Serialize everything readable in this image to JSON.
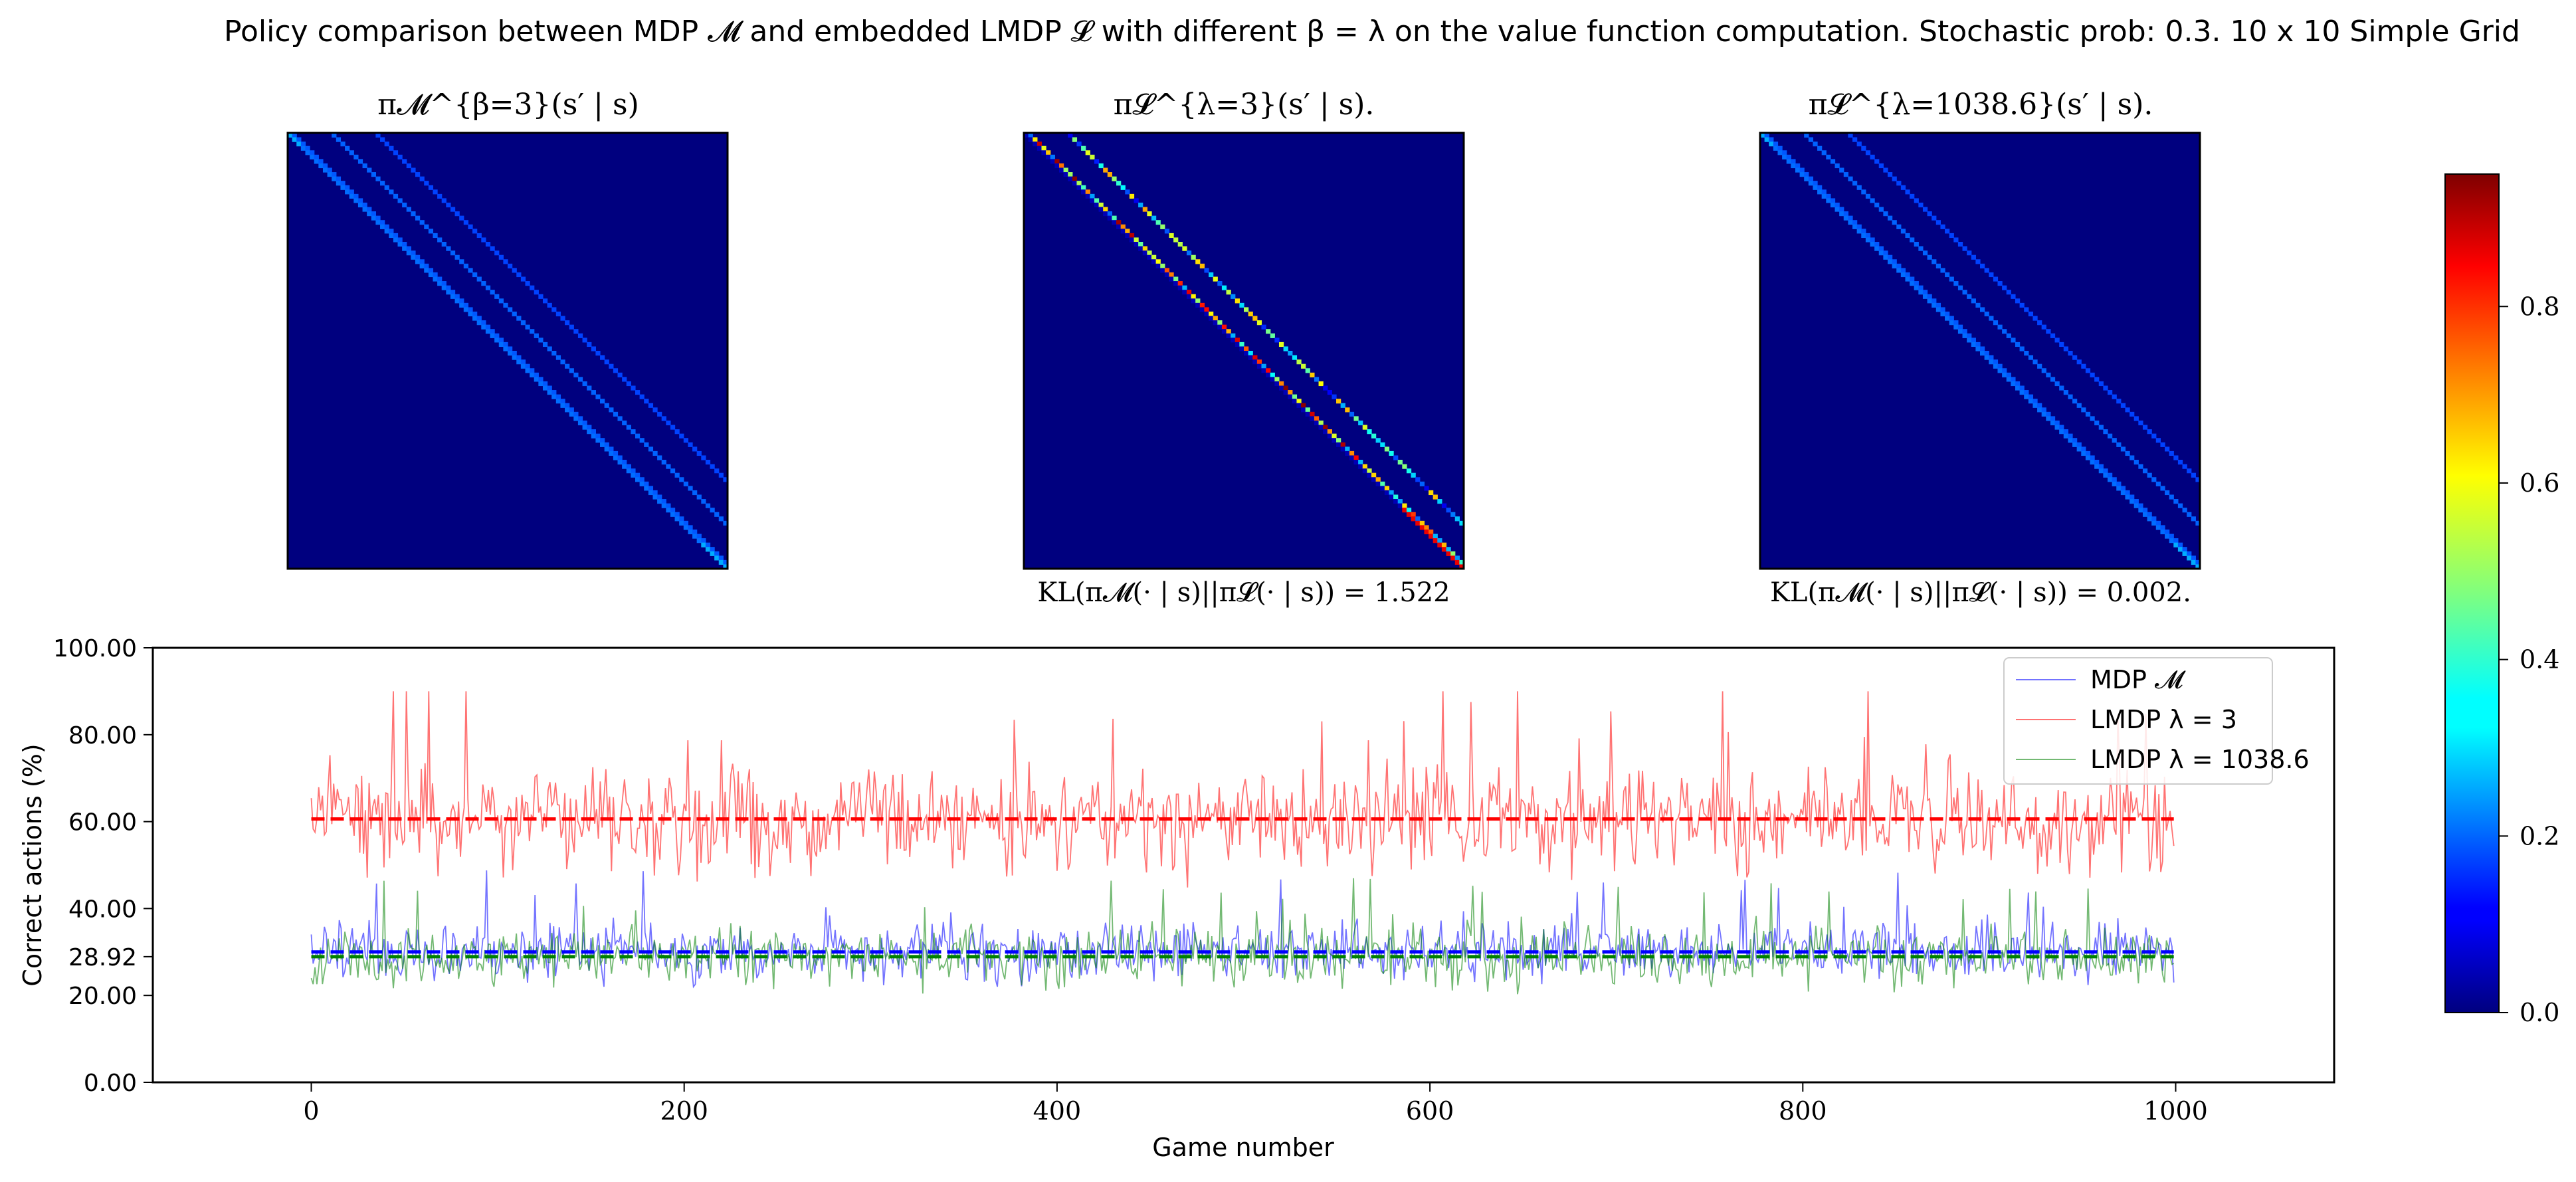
{
  "suptitle": "Policy comparison between MDP 𝓜 and embedded LMDP 𝓛 with different β = λ on the value function computation. Stochastic prob: 0.3. 10 x 10 Simple Grid",
  "heatmaps": [
    {
      "title": "π𝓜^{β=3}(s′ | s)",
      "caption": "",
      "pattern": "mdp"
    },
    {
      "title": "π𝓛^{λ=3}(s′ | s).",
      "caption": "KL(π𝓜(· | s)||π𝓛(· | s)) = 1.522",
      "pattern": "lmdp_low"
    },
    {
      "title": "π𝓛^{λ=1038.6}(s′ | s).",
      "caption": "KL(π𝓜(· | s)||π𝓛(· | s)) = 0.002.",
      "pattern": "mdp"
    }
  ],
  "colorbar": {
    "colormap": "jet",
    "range": [
      0.0,
      0.95
    ],
    "ticks": [
      0.0,
      0.2,
      0.4,
      0.6,
      0.8
    ],
    "tick_labels": [
      "0.0",
      "0.2",
      "0.4",
      "0.6",
      "0.8"
    ]
  },
  "chart_data": [
    {
      "type": "heatmap",
      "title": "π𝓜^{β=3}(s′ | s)",
      "size": [
        100,
        100
      ],
      "description": "",
      "value_range": [
        0,
        0.25
      ]
    },
    {
      "type": "heatmap",
      "title": "π𝓛^{λ=3}(s′ | s).",
      "size": [
        100,
        100
      ],
      "value_range": [
        0,
        0.95
      ]
    },
    {
      "type": "heatmap",
      "title": "π𝓛^{λ=1038.6}(s′ | s).",
      "size": [
        100,
        100
      ],
      "value_range": [
        0,
        0.25
      ]
    },
    {
      "type": "line",
      "xlabel": "Game number",
      "ylabel": "Correct actions (%)",
      "xlim": [
        -85,
        1085
      ],
      "ylim": [
        0,
        100
      ],
      "xticks": [
        0,
        200,
        400,
        600,
        800,
        1000
      ],
      "xtick_labels": [
        "0",
        "200",
        "400",
        "600",
        "800",
        "1000"
      ],
      "yticks": [
        0,
        20,
        28.92,
        40,
        60,
        80,
        100
      ],
      "ytick_labels": [
        "0.00",
        "20.00",
        "28.92",
        "40.00",
        "60.00",
        "80.00",
        "100.00"
      ],
      "legend_position": "top-right",
      "n_games": 1000,
      "series": [
        {
          "name": "MDP 𝓜",
          "color": "#0000ff",
          "mean": 30.0,
          "spread": 4.0,
          "max": 52,
          "min": 22
        },
        {
          "name": "LMDP λ = 3",
          "color": "#ff0000",
          "mean": 60.6,
          "spread": 7.0,
          "max": 90,
          "min": 44
        },
        {
          "name": "LMDP λ = 1038.6",
          "color": "#008000",
          "mean": 28.92,
          "spread": 4.0,
          "max": 50,
          "min": 19
        }
      ],
      "mean_lines": [
        {
          "series": "MDP 𝓜",
          "value": 30.0,
          "color": "#0000ff"
        },
        {
          "series": "LMDP λ = 3",
          "value": 60.6,
          "color": "#ff0000"
        },
        {
          "series": "LMDP λ = 1038.6",
          "value": 28.92,
          "color": "#008000"
        }
      ]
    }
  ]
}
